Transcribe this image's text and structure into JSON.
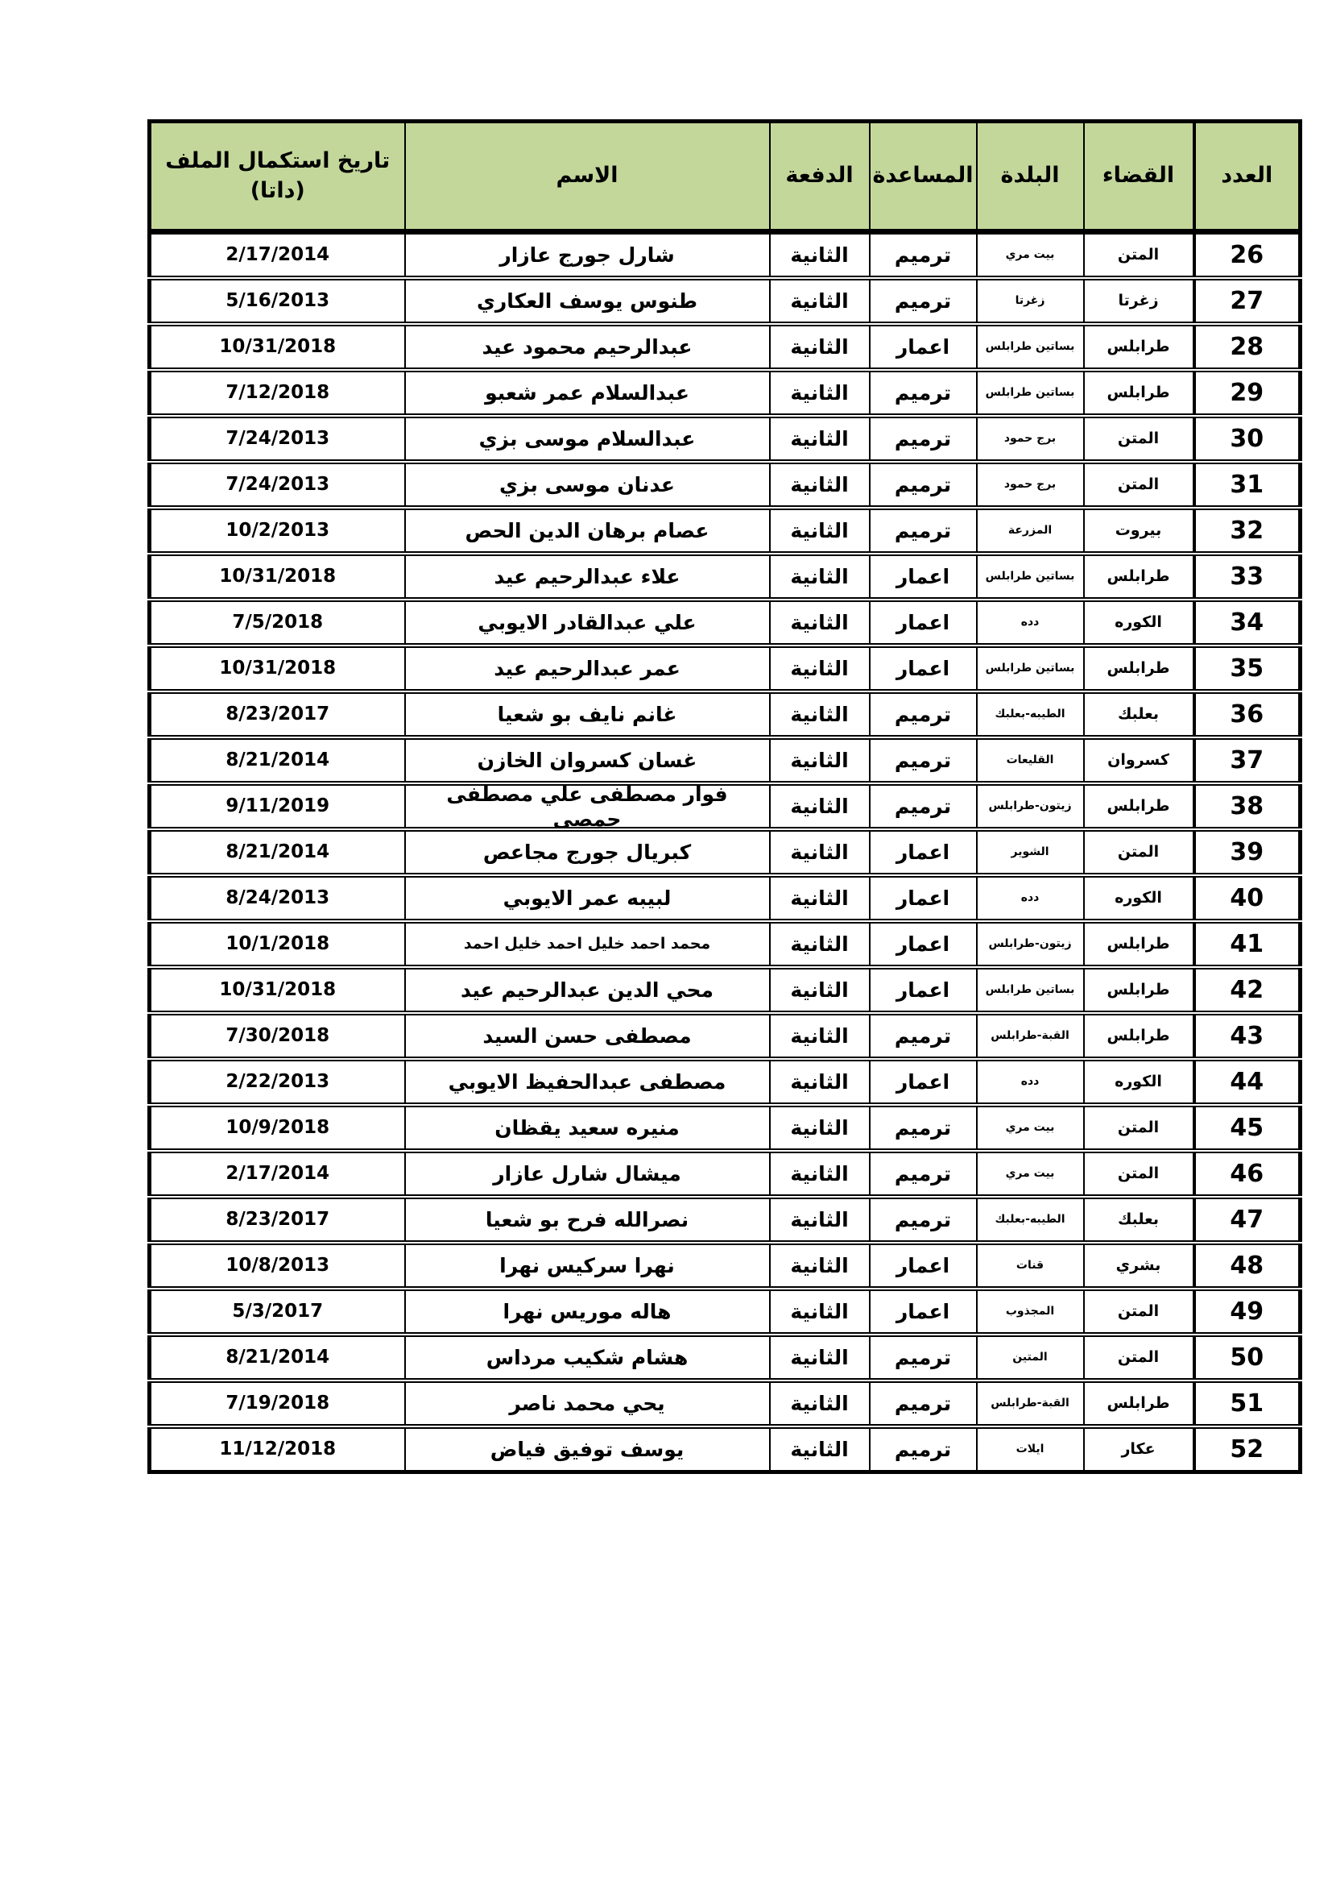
{
  "table": {
    "header_fill": "#c4d79b",
    "headers": {
      "number": "العدد",
      "district": "القضاء",
      "town": "البلدة",
      "assistance": "المساعدة",
      "batch": "الدفعة",
      "name": "الاسم",
      "date": "تاريخ استكمال الملف (داتا)"
    },
    "rows": [
      {
        "number": "26",
        "district": "المتن",
        "town": "بيت مري",
        "assistance": "ترميم",
        "batch": "الثانية",
        "name": "شارل جورج عازار",
        "date": "2/17/2014"
      },
      {
        "number": "27",
        "district": "زغرتا",
        "town": "زغرتا",
        "assistance": "ترميم",
        "batch": "الثانية",
        "name": "طنوس يوسف العكاري",
        "date": "5/16/2013"
      },
      {
        "number": "28",
        "district": "طرابلس",
        "town": "بساتين طرابلس",
        "assistance": "اعمار",
        "batch": "الثانية",
        "name": "عبدالرحيم محمود عيد",
        "date": "10/31/2018"
      },
      {
        "number": "29",
        "district": "طرابلس",
        "town": "بساتين طرابلس",
        "assistance": "ترميم",
        "batch": "الثانية",
        "name": "عبدالسلام عمر شعبو",
        "date": "7/12/2018"
      },
      {
        "number": "30",
        "district": "المتن",
        "town": "برج حمود",
        "assistance": "ترميم",
        "batch": "الثانية",
        "name": "عبدالسلام موسى بزي",
        "date": "7/24/2013"
      },
      {
        "number": "31",
        "district": "المتن",
        "town": "برج حمود",
        "assistance": "ترميم",
        "batch": "الثانية",
        "name": "عدنان موسى بزي",
        "date": "7/24/2013"
      },
      {
        "number": "32",
        "district": "بيروت",
        "town": "المزرعة",
        "assistance": "ترميم",
        "batch": "الثانية",
        "name": "عصام برهان الدين الحص",
        "date": "10/2/2013"
      },
      {
        "number": "33",
        "district": "طرابلس",
        "town": "بساتين طرابلس",
        "assistance": "اعمار",
        "batch": "الثانية",
        "name": "علاء عبدالرحيم عيد",
        "date": "10/31/2018"
      },
      {
        "number": "34",
        "district": "الكوره",
        "town": "دده",
        "assistance": "اعمار",
        "batch": "الثانية",
        "name": "علي عبدالقادر الايوبي",
        "date": "7/5/2018"
      },
      {
        "number": "35",
        "district": "طرابلس",
        "town": "بساتين طرابلس",
        "assistance": "اعمار",
        "batch": "الثانية",
        "name": "عمر عبدالرحيم عيد",
        "date": "10/31/2018"
      },
      {
        "number": "36",
        "district": "بعلبك",
        "town": "الطيبه-بعلبك",
        "assistance": "ترميم",
        "batch": "الثانية",
        "name": "غانم نايف بو شعيا",
        "date": "8/23/2017"
      },
      {
        "number": "37",
        "district": "كسروان",
        "town": "القليعات",
        "assistance": "ترميم",
        "batch": "الثانية",
        "name": "غسان كسروان الخازن",
        "date": "8/21/2014"
      },
      {
        "number": "38",
        "district": "طرابلس",
        "town": "زيتون-طرابلس",
        "assistance": "ترميم",
        "batch": "الثانية",
        "name": "فوار مصطفى علي مصطفى\nحمصي",
        "date": "9/11/2019"
      },
      {
        "number": "39",
        "district": "المتن",
        "town": "الشوير",
        "assistance": "اعمار",
        "batch": "الثانية",
        "name": "كبريال جورج مجاعص",
        "date": "8/21/2014"
      },
      {
        "number": "40",
        "district": "الكوره",
        "town": "دده",
        "assistance": "اعمار",
        "batch": "الثانية",
        "name": "لبيبه عمر الايوبي",
        "date": "8/24/2013"
      },
      {
        "number": "41",
        "district": "طرابلس",
        "town": "زيتون-طرابلس",
        "assistance": "اعمار",
        "batch": "الثانية",
        "name": "محمد احمد خليل احمد خليل احمد",
        "date": "10/1/2018"
      },
      {
        "number": "42",
        "district": "طرابلس",
        "town": "بساتين طرابلس",
        "assistance": "اعمار",
        "batch": "الثانية",
        "name": "محي الدين عبدالرحيم عيد",
        "date": "10/31/2018"
      },
      {
        "number": "43",
        "district": "طرابلس",
        "town": "القبة-طرابلس",
        "assistance": "ترميم",
        "batch": "الثانية",
        "name": "مصطفى حسن السيد",
        "date": "7/30/2018"
      },
      {
        "number": "44",
        "district": "الكوره",
        "town": "دده",
        "assistance": "اعمار",
        "batch": "الثانية",
        "name": "مصطفى عبدالحفيظ  الايوبي",
        "date": "2/22/2013"
      },
      {
        "number": "45",
        "district": "المتن",
        "town": "بيت مري",
        "assistance": "ترميم",
        "batch": "الثانية",
        "name": "منيره سعيد يقظان",
        "date": "10/9/2018"
      },
      {
        "number": "46",
        "district": "المتن",
        "town": "بيت مري",
        "assistance": "ترميم",
        "batch": "الثانية",
        "name": "ميشال شارل عازار",
        "date": "2/17/2014"
      },
      {
        "number": "47",
        "district": "بعلبك",
        "town": "الطيبه-بعلبك",
        "assistance": "ترميم",
        "batch": "الثانية",
        "name": "نصرالله فرح بو شعيا",
        "date": "8/23/2017"
      },
      {
        "number": "48",
        "district": "بشري",
        "town": "قنات",
        "assistance": "اعمار",
        "batch": "الثانية",
        "name": "نهرا سركيس نهرا",
        "date": "10/8/2013"
      },
      {
        "number": "49",
        "district": "المتن",
        "town": "المجذوب",
        "assistance": "اعمار",
        "batch": "الثانية",
        "name": "هاله موريس نهرا",
        "date": "5/3/2017"
      },
      {
        "number": "50",
        "district": "المتن",
        "town": "المتين",
        "assistance": "ترميم",
        "batch": "الثانية",
        "name": "هشام شكيب مرداس",
        "date": "8/21/2014"
      },
      {
        "number": "51",
        "district": "طرابلس",
        "town": "القبة-طرابلس",
        "assistance": "ترميم",
        "batch": "الثانية",
        "name": "يحي محمد ناصر",
        "date": "7/19/2018"
      },
      {
        "number": "52",
        "district": "عكار",
        "town": "ايلات",
        "assistance": "ترميم",
        "batch": "الثانية",
        "name": "يوسف توفيق فياض",
        "date": "11/12/2018"
      }
    ]
  }
}
